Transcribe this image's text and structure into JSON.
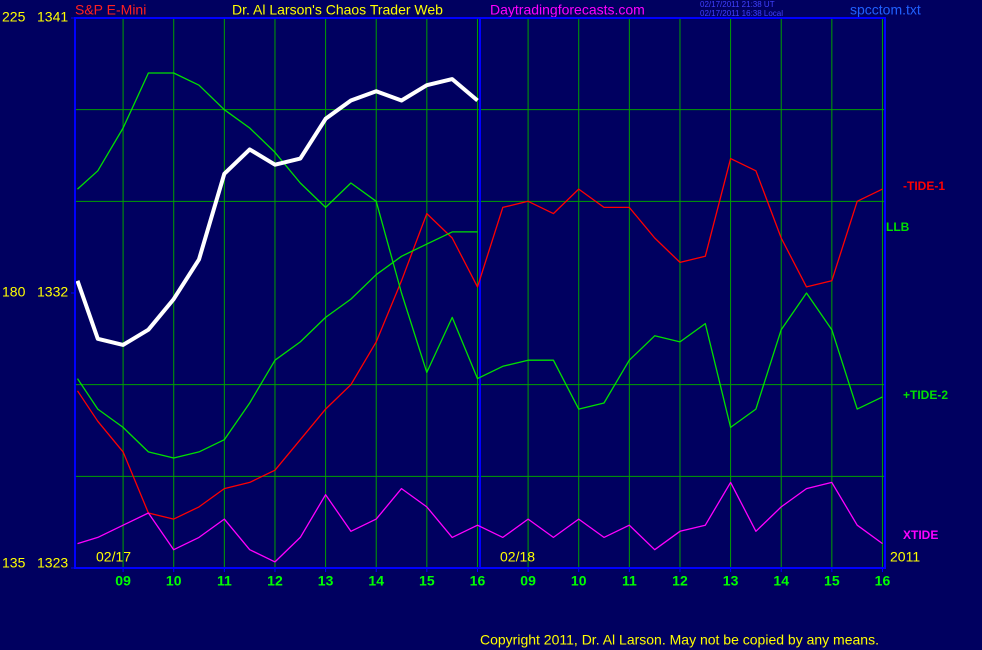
{
  "chart_data": {
    "type": "line",
    "symbol": "S&P E-Mini",
    "title": "Dr. Al Larson's Chaos Trader Web",
    "site": "Daytradingforecasts.com",
    "timestamps": [
      "02/17/2011 21:38 UT",
      "02/17/2011 16:38 Local"
    ],
    "file": "spcctom.txt",
    "copyright": "Copyright 2011, Dr. Al Larson. May not be copied by any means.",
    "annotations": [
      "02/17",
      "02/18",
      "2011"
    ],
    "x": [
      0.1,
      0.5,
      1,
      1.5,
      2,
      2.5,
      3,
      3.5,
      4,
      4.5,
      5,
      5.5,
      6,
      6.5,
      7,
      7.5,
      8,
      8.5,
      9,
      9.5,
      10,
      10.5,
      11,
      11.5,
      12,
      12.5,
      13,
      13.5,
      14,
      14.5,
      15,
      15.5,
      16
    ],
    "xlim": [
      0.05,
      16.05
    ],
    "xticks": [
      {
        "value": 1,
        "label": "09"
      },
      {
        "value": 2,
        "label": "10"
      },
      {
        "value": 3,
        "label": "11"
      },
      {
        "value": 4,
        "label": "12"
      },
      {
        "value": 5,
        "label": "13"
      },
      {
        "value": 6,
        "label": "14"
      },
      {
        "value": 7,
        "label": "15"
      },
      {
        "value": 8,
        "label": "16"
      },
      {
        "value": 9,
        "label": "09"
      },
      {
        "value": 10,
        "label": "10"
      },
      {
        "value": 11,
        "label": "11"
      },
      {
        "value": 12,
        "label": "12"
      },
      {
        "value": 13,
        "label": "13"
      },
      {
        "value": 14,
        "label": "14"
      },
      {
        "value": 15,
        "label": "15"
      },
      {
        "value": 16,
        "label": "16"
      }
    ],
    "ylim": [
      135,
      225
    ],
    "yticks": [
      135,
      180,
      225
    ],
    "minor_yticks": [
      150,
      165,
      195,
      210
    ],
    "y2lim": [
      1323,
      1341
    ],
    "y2ticks": [
      1323,
      1332,
      1341
    ],
    "grid": true,
    "series": [
      {
        "name": "-TIDE-1",
        "color": "#ff0000",
        "values": [
          164,
          159,
          154,
          144,
          143,
          145,
          148,
          149,
          151,
          156,
          161,
          165,
          172,
          182,
          193,
          189,
          181,
          194,
          195,
          193,
          197,
          194,
          194,
          189,
          185,
          186,
          202,
          200,
          189,
          181,
          182,
          195,
          197
        ]
      },
      {
        "name": "LLB",
        "color": "#00e000",
        "values": [
          166,
          161,
          158,
          154,
          153,
          154,
          156,
          162,
          169,
          172,
          176,
          179,
          183,
          186,
          188,
          190,
          190,
          null,
          null,
          null,
          null,
          null,
          null,
          null,
          null,
          null,
          null,
          null,
          null,
          null,
          null,
          null,
          null
        ]
      },
      {
        "name": "+TIDE-2",
        "color": "#00e000",
        "values": [
          197,
          200,
          207,
          216,
          216,
          214,
          210,
          207,
          203,
          198,
          194,
          198,
          195,
          180,
          167,
          176,
          166,
          168,
          169,
          169,
          161,
          162,
          169,
          173,
          172,
          175,
          158,
          161,
          174,
          180,
          174,
          161,
          163
        ]
      },
      {
        "name": "XTIDE",
        "color": "#ff00ff",
        "values": [
          139,
          140,
          142,
          144,
          138,
          140,
          143,
          138,
          136,
          140,
          147,
          141,
          143,
          148,
          145,
          140,
          142,
          140,
          143,
          140,
          143,
          140,
          142,
          138,
          141,
          142,
          149,
          141,
          145,
          148,
          149,
          142,
          139
        ]
      },
      {
        "color": "#ffffff",
        "axis": "y2",
        "values": [
          1332.4,
          1330.5,
          1330.3,
          1330.8,
          1331.8,
          1333.1,
          1335.9,
          1336.7,
          1336.2,
          1336.4,
          1337.7,
          1338.3,
          1338.6,
          1338.3,
          1338.8,
          1339.0,
          1338.3,
          null,
          null,
          null,
          null,
          null,
          null,
          null,
          null,
          null,
          null,
          null,
          null,
          null,
          null,
          null,
          null
        ]
      }
    ]
  }
}
